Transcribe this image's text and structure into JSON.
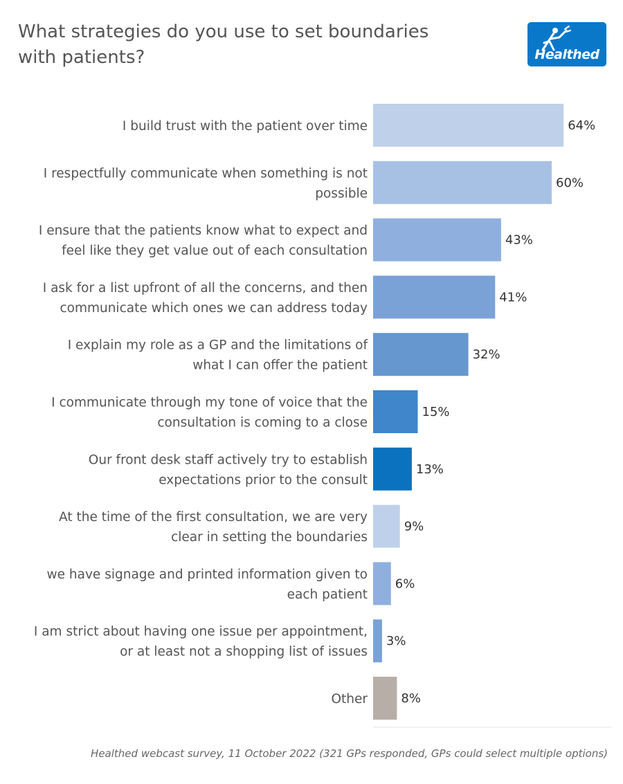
{
  "title": "What strategies do you use to set boundaries with patients?",
  "logo": {
    "text": "Healthed",
    "icon": "mercury-figure-icon",
    "color": "#0a78c9"
  },
  "footer": "Healthed webcast survey, 11 October 2022 (321 GPs responded, GPs could select multiple options)",
  "chart_data": {
    "type": "bar",
    "orientation": "horizontal",
    "categories": [
      [
        "I build trust with the patient over time"
      ],
      [
        "I respectfully communicate when something is not",
        "possible"
      ],
      [
        "I ensure that the patients know what to expect and",
        "feel like they get value out of each consultation"
      ],
      [
        "I ask for a list upfront of all the concerns, and then",
        "communicate which ones we can address today"
      ],
      [
        "I explain my role as a GP and the limitations of",
        "what I can offer the patient"
      ],
      [
        "I communicate through my tone of voice that the",
        "consultation is coming to a close"
      ],
      [
        "Our front desk staff actively try to establish",
        "expectations prior to the consult"
      ],
      [
        "At the time of the first consultation, we are very",
        "clear in setting the boundaries"
      ],
      [
        "we have signage and printed information given to",
        "each patient"
      ],
      [
        "I am strict about having one issue per appointment,",
        "or at least not a shopping list of issues"
      ],
      [
        "Other"
      ]
    ],
    "values": [
      64,
      60,
      43,
      41,
      32,
      15,
      13,
      9,
      6,
      3,
      8
    ],
    "value_labels": [
      "64%",
      "60%",
      "43%",
      "41%",
      "32%",
      "15%",
      "13%",
      "9%",
      "6%",
      "3%",
      "8%"
    ],
    "colors": [
      "#bfd1ea",
      "#a7c1e5",
      "#8fb0de",
      "#7ba2d6",
      "#6697cf",
      "#3f86cb",
      "#0a72bf",
      "#bfd1ea",
      "#8fb0de",
      "#7ba2d6",
      "#b8aea8"
    ],
    "xlim": [
      0,
      80
    ],
    "grid": false,
    "legend": "none"
  }
}
